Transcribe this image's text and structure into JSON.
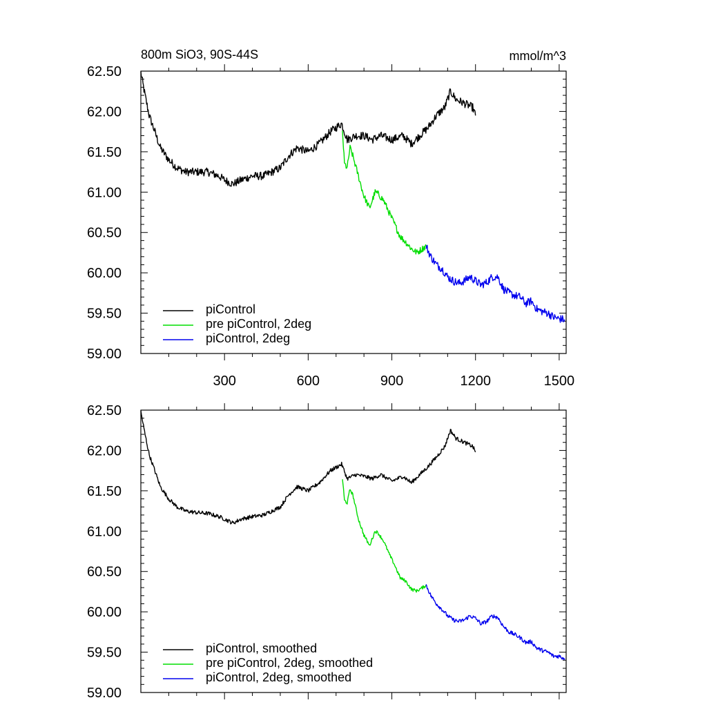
{
  "chart_data": [
    {
      "type": "line",
      "title": "800m SiO3, 90S-44S",
      "units": "mmol/m^3",
      "xlim": [
        0,
        1525
      ],
      "ylim": [
        59.0,
        62.5
      ],
      "xticks": [
        300,
        600,
        900,
        1200,
        1500
      ],
      "yticks": [
        59.0,
        59.5,
        60.0,
        60.5,
        61.0,
        61.5,
        62.0,
        62.5
      ],
      "ytick_labels": [
        "59.00",
        "59.50",
        "60.00",
        "60.50",
        "61.00",
        "61.50",
        "62.00",
        "62.50"
      ],
      "xtick_labels": [
        "300",
        "600",
        "900",
        "1200",
        "1500"
      ],
      "legend_position": "bottom-left",
      "series": [
        {
          "name": "piControl",
          "color": "#000000",
          "noise": 0.05,
          "x": [
            0,
            15,
            30,
            50,
            70,
            100,
            130,
            160,
            200,
            240,
            280,
            300,
            330,
            360,
            400,
            440,
            470,
            500,
            530,
            560,
            600,
            640,
            680,
            720,
            740,
            770,
            800,
            830,
            860,
            900,
            940,
            970,
            1000,
            1030,
            1060,
            1090,
            1110,
            1130,
            1160,
            1190,
            1200
          ],
          "y": [
            62.48,
            62.2,
            61.95,
            61.75,
            61.55,
            61.4,
            61.3,
            61.25,
            61.25,
            61.25,
            61.2,
            61.15,
            61.1,
            61.15,
            61.2,
            61.2,
            61.25,
            61.3,
            61.45,
            61.55,
            61.5,
            61.6,
            61.75,
            61.85,
            61.65,
            61.7,
            61.7,
            61.65,
            61.7,
            61.65,
            61.7,
            61.6,
            61.7,
            61.8,
            61.95,
            62.05,
            62.25,
            62.15,
            62.1,
            62.05,
            61.95
          ]
        },
        {
          "name": "pre piControl, 2deg",
          "color": "#00dd00",
          "noise": 0.04,
          "x": [
            723,
            730,
            740,
            750,
            760,
            780,
            800,
            820,
            840,
            850,
            870,
            890,
            910,
            930,
            950,
            970,
            990,
            1010,
            1023
          ],
          "y": [
            61.75,
            61.35,
            61.3,
            61.55,
            61.45,
            61.2,
            60.95,
            60.8,
            61.0,
            60.98,
            60.9,
            60.75,
            60.6,
            60.45,
            60.38,
            60.3,
            60.25,
            60.3,
            60.33
          ]
        },
        {
          "name": "piControl, 2deg",
          "color": "#0000ee",
          "noise": 0.05,
          "x": [
            1023,
            1040,
            1060,
            1080,
            1100,
            1120,
            1140,
            1160,
            1180,
            1200,
            1220,
            1240,
            1260,
            1280,
            1300,
            1320,
            1340,
            1360,
            1380,
            1400,
            1420,
            1440,
            1460,
            1480,
            1500,
            1520
          ],
          "y": [
            60.33,
            60.2,
            60.1,
            60.05,
            59.95,
            59.9,
            59.87,
            59.9,
            59.95,
            59.9,
            59.85,
            59.88,
            59.95,
            59.95,
            59.8,
            59.75,
            59.72,
            59.7,
            59.62,
            59.65,
            59.55,
            59.52,
            59.5,
            59.45,
            59.43,
            59.42
          ]
        }
      ]
    },
    {
      "type": "line",
      "title": "",
      "xlim": [
        0,
        1525
      ],
      "ylim": [
        59.0,
        62.5
      ],
      "xticks": [
        300,
        600,
        900,
        1200,
        1500
      ],
      "yticks": [
        59.0,
        59.5,
        60.0,
        60.5,
        61.0,
        61.5,
        62.0,
        62.5
      ],
      "ytick_labels": [
        "59.00",
        "59.50",
        "60.00",
        "60.50",
        "61.00",
        "61.50",
        "62.00",
        "62.50"
      ],
      "xtick_labels": [],
      "legend_position": "bottom-left",
      "series": [
        {
          "name": "piControl, smoothed",
          "color": "#000000",
          "noise": 0.025,
          "x": [
            0,
            15,
            30,
            50,
            70,
            100,
            130,
            160,
            200,
            240,
            280,
            300,
            330,
            360,
            400,
            440,
            470,
            500,
            530,
            560,
            600,
            640,
            680,
            720,
            740,
            770,
            800,
            830,
            860,
            900,
            940,
            970,
            1000,
            1030,
            1060,
            1090,
            1110,
            1130,
            1160,
            1190,
            1200
          ],
          "y": [
            62.48,
            62.2,
            61.95,
            61.75,
            61.55,
            61.4,
            61.3,
            61.25,
            61.23,
            61.22,
            61.18,
            61.15,
            61.1,
            61.15,
            61.18,
            61.2,
            61.25,
            61.3,
            61.45,
            61.55,
            61.5,
            61.6,
            61.75,
            61.83,
            61.65,
            61.7,
            61.68,
            61.65,
            61.7,
            61.62,
            61.68,
            61.6,
            61.7,
            61.8,
            61.92,
            62.05,
            62.25,
            62.15,
            62.1,
            62.05,
            61.98
          ]
        },
        {
          "name": "pre piControl, 2deg, smoothed",
          "color": "#00dd00",
          "noise": 0.02,
          "x": [
            723,
            730,
            740,
            750,
            760,
            780,
            800,
            820,
            840,
            850,
            870,
            890,
            910,
            930,
            950,
            970,
            990,
            1010,
            1023
          ],
          "y": [
            61.65,
            61.38,
            61.35,
            61.52,
            61.45,
            61.15,
            60.95,
            60.82,
            61.0,
            60.98,
            60.88,
            60.72,
            60.58,
            60.42,
            60.38,
            60.28,
            60.26,
            60.3,
            60.33
          ]
        },
        {
          "name": "piControl, 2deg, smoothed",
          "color": "#0000ee",
          "noise": 0.025,
          "x": [
            1023,
            1040,
            1060,
            1080,
            1100,
            1120,
            1140,
            1160,
            1180,
            1200,
            1220,
            1240,
            1260,
            1280,
            1300,
            1320,
            1340,
            1360,
            1380,
            1400,
            1420,
            1440,
            1460,
            1480,
            1500,
            1520
          ],
          "y": [
            60.33,
            60.2,
            60.1,
            60.03,
            59.95,
            59.9,
            59.88,
            59.9,
            59.95,
            59.92,
            59.85,
            59.88,
            59.95,
            59.93,
            59.82,
            59.75,
            59.72,
            59.68,
            59.62,
            59.63,
            59.55,
            59.52,
            59.5,
            59.45,
            59.45,
            59.42
          ]
        }
      ]
    }
  ]
}
